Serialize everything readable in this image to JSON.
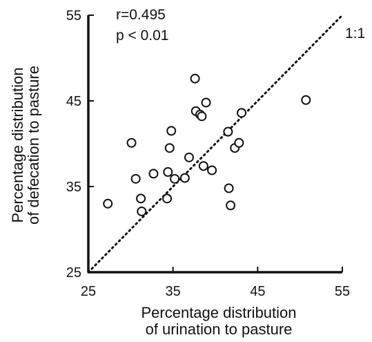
{
  "chart_data": {
    "type": "scatter",
    "title": "",
    "xlabel_lines": [
      "Percentage distribution",
      "of urination to pasture"
    ],
    "ylabel_lines": [
      "Percentage distribution",
      "of defecation to pasture"
    ],
    "xlim": [
      25,
      55
    ],
    "ylim": [
      25,
      55
    ],
    "xticks": [
      25,
      35,
      45,
      55
    ],
    "yticks": [
      25,
      35,
      45,
      55
    ],
    "x_tick_labels": [
      "25",
      "35",
      "45",
      "55"
    ],
    "y_tick_labels": [
      "25",
      "35",
      "45",
      "55"
    ],
    "grid": false,
    "annotations": {
      "r": "r=0.495",
      "p": "p < 0.01",
      "line_label": "1:1"
    },
    "reference_line": {
      "type": "identity",
      "style": "dotted",
      "from": [
        25,
        25
      ],
      "to": [
        55,
        55
      ]
    },
    "points": [
      {
        "x": 27.3,
        "y": 33.0
      },
      {
        "x": 30.1,
        "y": 40.1
      },
      {
        "x": 30.6,
        "y": 35.9
      },
      {
        "x": 31.2,
        "y": 33.6
      },
      {
        "x": 31.3,
        "y": 32.1
      },
      {
        "x": 32.7,
        "y": 36.5
      },
      {
        "x": 34.3,
        "y": 33.6
      },
      {
        "x": 34.4,
        "y": 36.7
      },
      {
        "x": 34.6,
        "y": 39.5
      },
      {
        "x": 34.8,
        "y": 41.5
      },
      {
        "x": 35.2,
        "y": 35.9
      },
      {
        "x": 36.4,
        "y": 36.0
      },
      {
        "x": 36.9,
        "y": 38.4
      },
      {
        "x": 37.6,
        "y": 47.6
      },
      {
        "x": 37.7,
        "y": 43.8
      },
      {
        "x": 38.2,
        "y": 43.4
      },
      {
        "x": 38.4,
        "y": 43.2
      },
      {
        "x": 38.6,
        "y": 37.4
      },
      {
        "x": 38.9,
        "y": 44.8
      },
      {
        "x": 39.6,
        "y": 36.9
      },
      {
        "x": 41.5,
        "y": 41.4
      },
      {
        "x": 41.6,
        "y": 34.8
      },
      {
        "x": 41.8,
        "y": 32.8
      },
      {
        "x": 42.3,
        "y": 39.5
      },
      {
        "x": 42.8,
        "y": 40.1
      },
      {
        "x": 43.1,
        "y": 43.6
      },
      {
        "x": 50.7,
        "y": 45.1
      }
    ]
  }
}
